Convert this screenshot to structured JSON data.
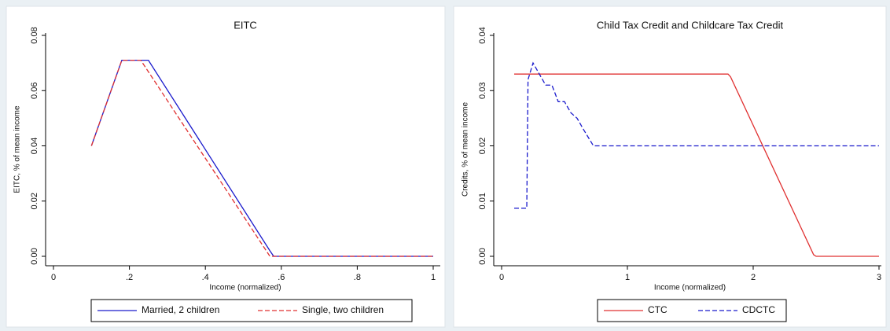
{
  "chart_data": [
    {
      "type": "line",
      "title": "EITC",
      "x_label": "Income (normalized)",
      "y_label": "EITC, % of mean income",
      "xlim": [
        0,
        1
      ],
      "ylim": [
        0,
        0.08
      ],
      "xticks": [
        0,
        {
          "value": 0.2,
          "label": ".2"
        },
        {
          "value": 0.4,
          "label": ".4"
        },
        {
          "value": 0.6,
          "label": ".6"
        },
        {
          "value": 0.8,
          "label": ".8"
        },
        1
      ],
      "yticks": [
        {
          "value": 0,
          "label": "0.00"
        },
        {
          "value": 0.02,
          "label": "0.02"
        },
        {
          "value": 0.04,
          "label": "0.04"
        },
        {
          "value": 0.06,
          "label": "0.06"
        },
        {
          "value": 0.08,
          "label": "0.08"
        }
      ],
      "series": [
        {
          "name": "Married, 2 children",
          "color": "#1a1acc",
          "style": "solid",
          "x": [
            0.1,
            0.18,
            0.25,
            0.57,
            0.58,
            1
          ],
          "values": [
            0.04,
            0.071,
            0.071,
            0.002,
            0,
            0
          ]
        },
        {
          "name": "Single, two children",
          "color": "#e03030",
          "style": "dashed",
          "x": [
            0.1,
            0.18,
            0.23,
            0.57,
            1
          ],
          "values": [
            0.04,
            0.071,
            0.071,
            0,
            0
          ]
        }
      ]
    },
    {
      "type": "line",
      "title": "Child Tax Credit and Childcare Tax Credit",
      "x_label": "Income (normalized)",
      "y_label": "Credits, % of mean income",
      "xlim": [
        0,
        3
      ],
      "ylim": [
        0,
        0.04
      ],
      "xticks": [
        0,
        1,
        2,
        3
      ],
      "yticks": [
        {
          "value": 0,
          "label": "0.00"
        },
        {
          "value": 0.01,
          "label": "0.01"
        },
        {
          "value": 0.02,
          "label": "0.02"
        },
        {
          "value": 0.03,
          "label": "0.03"
        },
        {
          "value": 0.04,
          "label": "0.04"
        }
      ],
      "series": [
        {
          "name": "CTC",
          "color": "#e03030",
          "style": "solid",
          "x": [
            0.1,
            1.8,
            1.82,
            2.48,
            2.5,
            3
          ],
          "values": [
            0.033,
            0.033,
            0.0325,
            0.0003,
            0,
            0
          ]
        },
        {
          "name": "CDCTC",
          "color": "#1a1acc",
          "style": "dashed",
          "x": [
            0.1,
            0.2,
            0.21,
            0.25,
            0.3,
            0.35,
            0.4,
            0.45,
            0.5,
            0.55,
            0.6,
            0.65,
            0.73,
            3
          ],
          "values": [
            0.0087,
            0.0087,
            0.032,
            0.035,
            0.033,
            0.031,
            0.031,
            0.028,
            0.028,
            0.026,
            0.025,
            0.023,
            0.02,
            0.02
          ]
        }
      ]
    }
  ]
}
